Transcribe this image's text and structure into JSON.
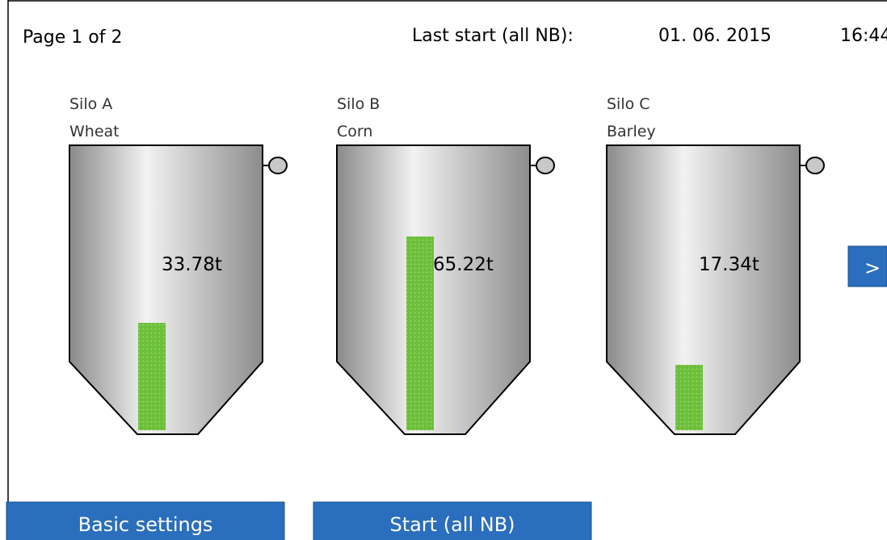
{
  "header": {
    "page": "Page 1 of 2",
    "last_start_label": "Last start (all NB):",
    "date": "01. 06. 2015",
    "time": "16:44"
  },
  "silos": [
    {
      "name": "Silo A",
      "product": "Wheat",
      "weight": "33.78t"
    },
    {
      "name": "Silo B",
      "product": "Corn",
      "weight": "65.22t"
    },
    {
      "name": "Silo C",
      "product": "Barley",
      "weight": "17.34t"
    }
  ],
  "buttons": {
    "next": ">",
    "basic_settings": "Basic settings",
    "start": "Start (all NB)"
  }
}
